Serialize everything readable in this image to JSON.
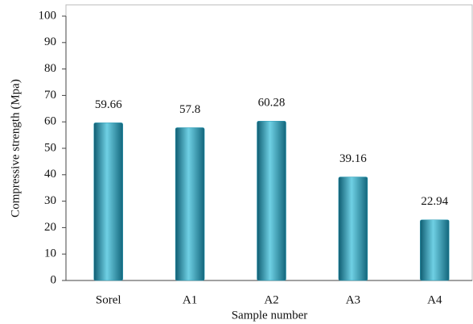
{
  "chart_data": {
    "type": "bar",
    "ylabel": "Compressive strength (Mpa)",
    "xlabel": "Sample number",
    "categories": [
      "Sorel",
      "A1",
      "A2",
      "A3",
      "A4"
    ],
    "values": [
      59.66,
      57.8,
      60.28,
      39.16,
      22.94
    ],
    "color": "#2a9bb5",
    "ylim": [
      0,
      100
    ],
    "yticks": [
      0,
      10,
      20,
      30,
      40,
      50,
      60,
      70,
      80,
      90,
      100
    ],
    "grid": false
  }
}
